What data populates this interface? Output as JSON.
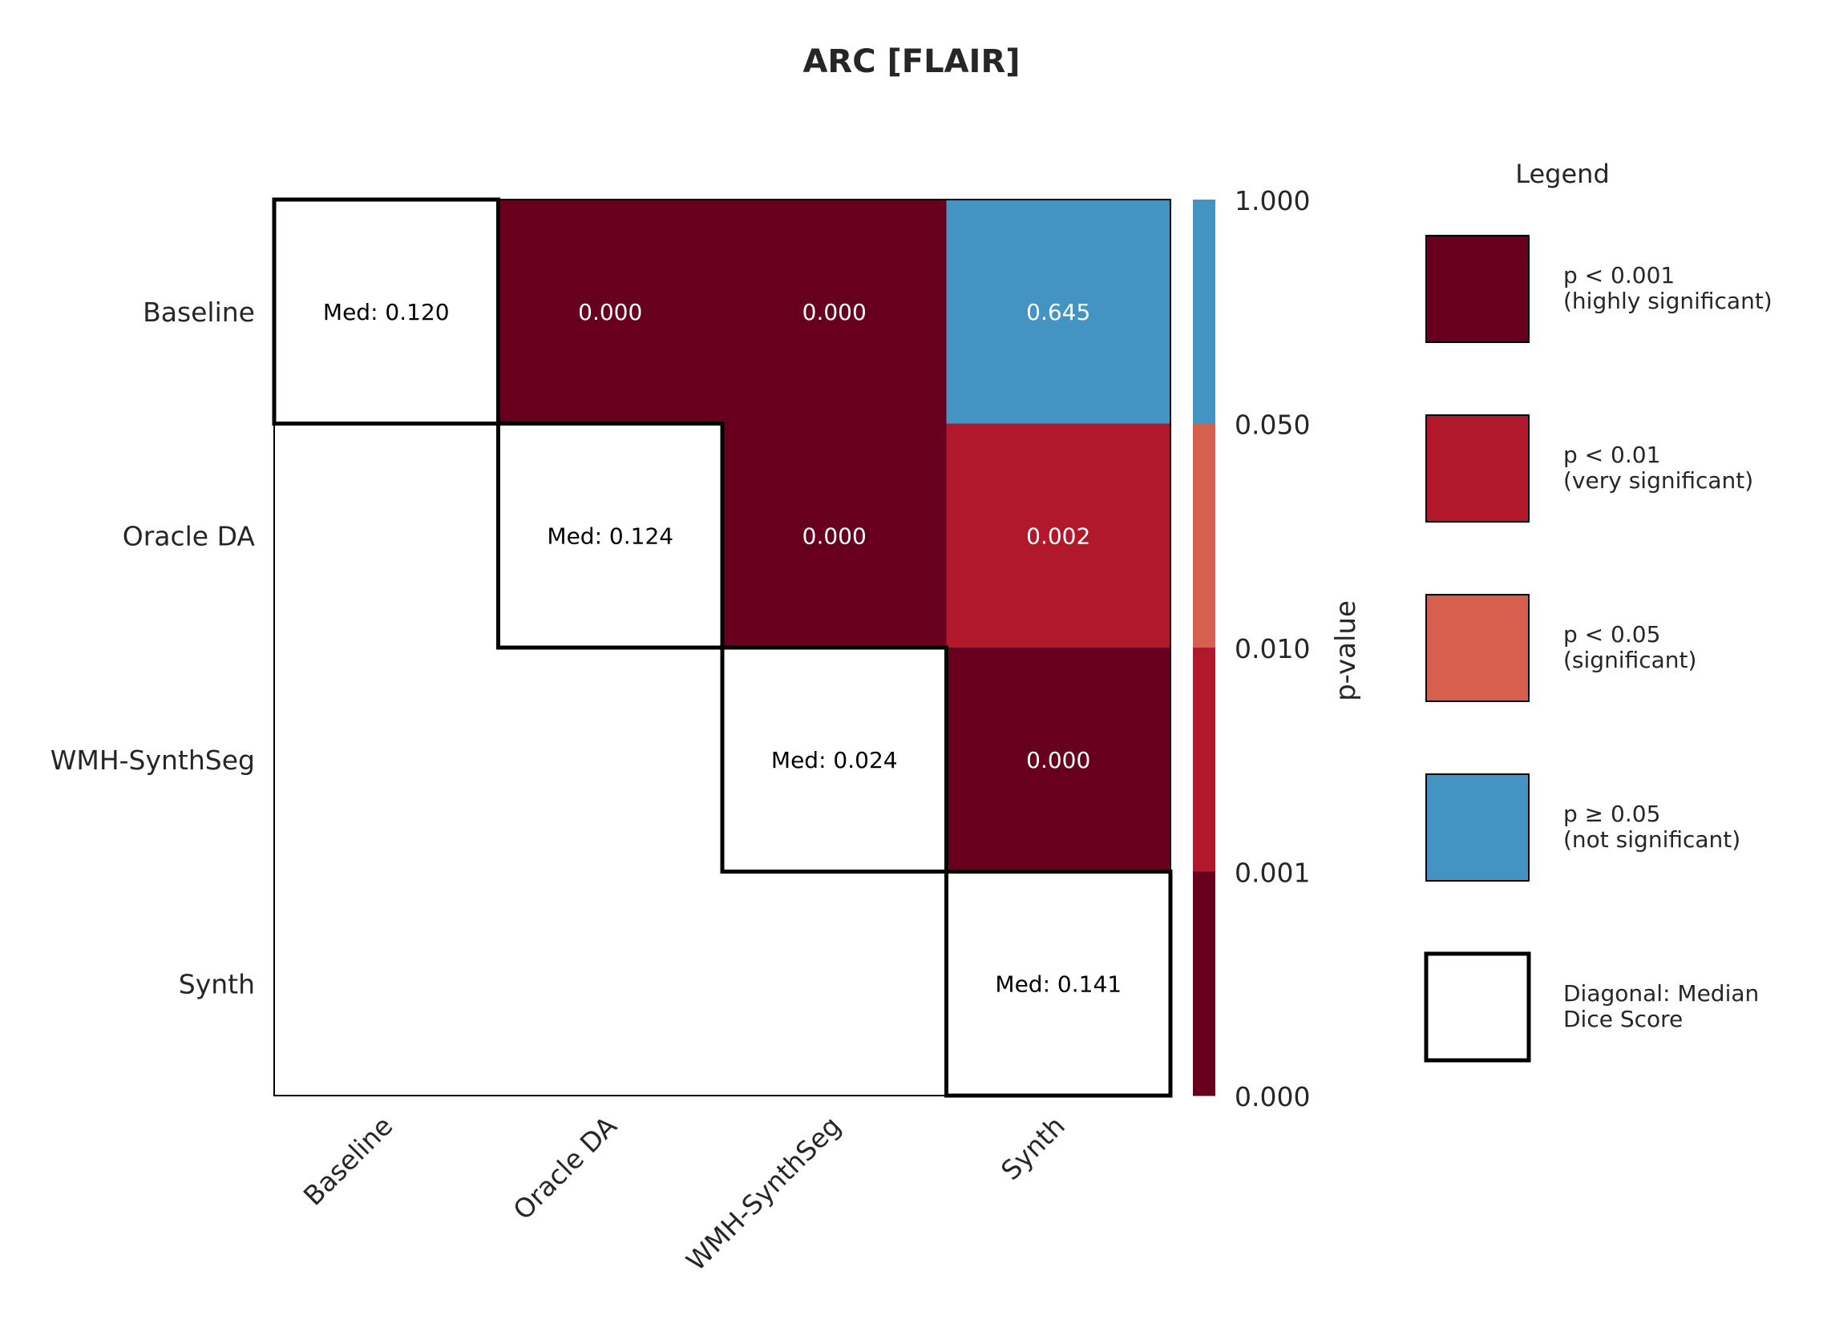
{
  "chart_data": {
    "type": "heatmap",
    "title": "ARC [FLAIR]",
    "rows": [
      "Baseline",
      "Oracle DA",
      "WMH-SynthSeg",
      "Synth"
    ],
    "columns": [
      "Baseline",
      "Oracle DA",
      "WMH-SynthSeg",
      "Synth"
    ],
    "diagonal": [
      {
        "label": "Med: 0.120",
        "value": 0.12
      },
      {
        "label": "Med: 0.124",
        "value": 0.124
      },
      {
        "label": "Med: 0.024",
        "value": 0.024
      },
      {
        "label": "Med: 0.141",
        "value": 0.141
      }
    ],
    "upper_cells": [
      {
        "row": 0,
        "col": 1,
        "p": 0.0,
        "label": "0.000",
        "color": "#67001f"
      },
      {
        "row": 0,
        "col": 2,
        "p": 0.0,
        "label": "0.000",
        "color": "#67001f"
      },
      {
        "row": 0,
        "col": 3,
        "p": 0.645,
        "label": "0.645",
        "color": "#4393c3"
      },
      {
        "row": 1,
        "col": 2,
        "p": 0.0,
        "label": "0.000",
        "color": "#67001f"
      },
      {
        "row": 1,
        "col": 3,
        "p": 0.002,
        "label": "0.002",
        "color": "#b2182b"
      },
      {
        "row": 2,
        "col": 3,
        "p": 0.0,
        "label": "0.000",
        "color": "#67001f"
      }
    ],
    "colorbar": {
      "label": "p-value",
      "ticks": [
        "1.000",
        "0.050",
        "0.010",
        "0.001",
        "0.000"
      ],
      "bands": [
        "#4393c3",
        "#d6604d",
        "#b2182b",
        "#67001f"
      ]
    },
    "legend": {
      "title": "Legend",
      "items": [
        {
          "line1": "p < 0.001",
          "line2": "(highly significant)",
          "color": "#67001f"
        },
        {
          "line1": "p < 0.01",
          "line2": "(very significant)",
          "color": "#b2182b"
        },
        {
          "line1": "p < 0.05",
          "line2": "(significant)",
          "color": "#d6604d"
        },
        {
          "line1": "p ≥ 0.05",
          "line2": "(not significant)",
          "color": "#4393c3"
        },
        {
          "line1": "Diagonal: Median",
          "line2": "Dice Score",
          "color": "#ffffff"
        }
      ]
    }
  }
}
